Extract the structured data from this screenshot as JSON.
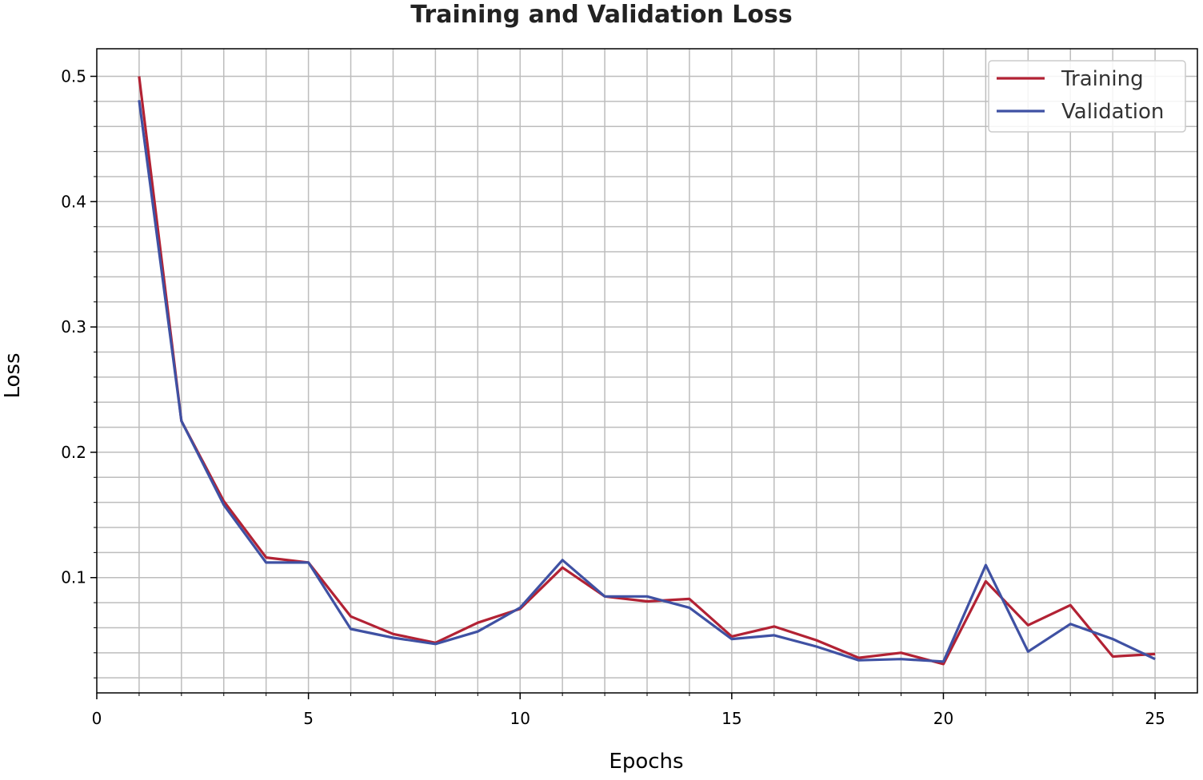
{
  "chart_data": {
    "type": "line",
    "title": "Training and Validation Loss",
    "xlabel": "Epochs",
    "ylabel": "Loss",
    "xlim": [
      0,
      26
    ],
    "ylim": [
      0.008,
      0.522
    ],
    "xticks": [
      0,
      5,
      10,
      15,
      20,
      25
    ],
    "xtick_labels": [
      "0",
      "5",
      "10",
      "15",
      "20",
      "25"
    ],
    "yticks": [
      0.1,
      0.2,
      0.3,
      0.4,
      0.5
    ],
    "ytick_labels": [
      "0.1",
      "0.2",
      "0.3",
      "0.4",
      "0.5"
    ],
    "grid": true,
    "legend_position": "top-right",
    "x": [
      1,
      2,
      3,
      4,
      5,
      6,
      7,
      8,
      9,
      10,
      11,
      12,
      13,
      14,
      15,
      16,
      17,
      18,
      19,
      20,
      21,
      22,
      23,
      24,
      25
    ],
    "series": [
      {
        "name": "Training",
        "color": "#b22234",
        "values": [
          0.5,
          0.225,
          0.161,
          0.116,
          0.112,
          0.069,
          0.055,
          0.048,
          0.064,
          0.075,
          0.108,
          0.085,
          0.081,
          0.083,
          0.053,
          0.061,
          0.05,
          0.036,
          0.04,
          0.031,
          0.097,
          0.062,
          0.078,
          0.037,
          0.039
        ]
      },
      {
        "name": "Validation",
        "color": "#3f51a3",
        "values": [
          0.481,
          0.225,
          0.158,
          0.112,
          0.112,
          0.059,
          0.052,
          0.047,
          0.057,
          0.076,
          0.114,
          0.085,
          0.085,
          0.076,
          0.051,
          0.054,
          0.045,
          0.034,
          0.035,
          0.033,
          0.11,
          0.041,
          0.063,
          0.051,
          0.035
        ]
      }
    ]
  }
}
